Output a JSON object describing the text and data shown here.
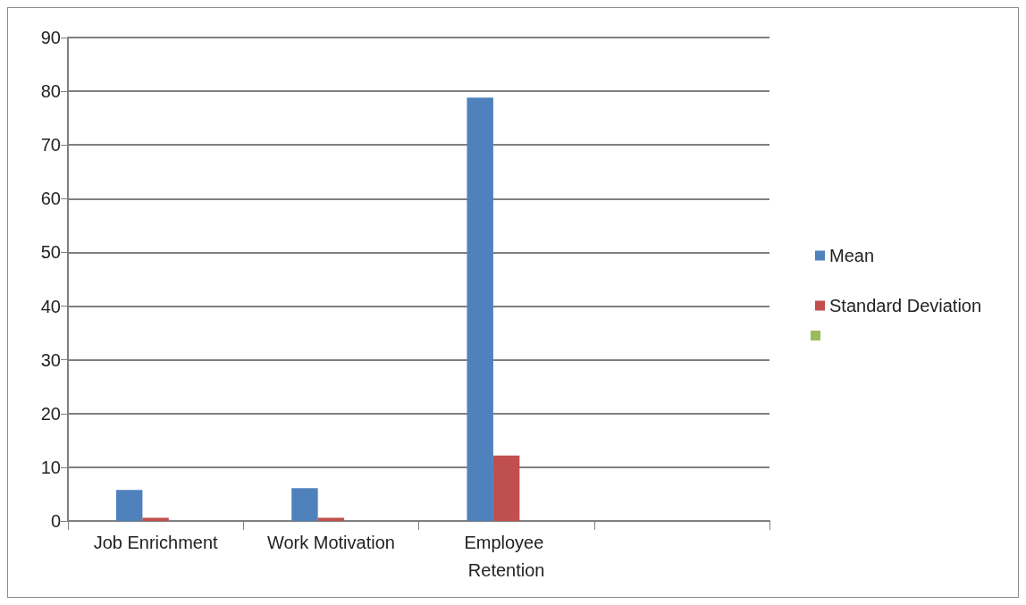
{
  "chart_data": {
    "type": "bar",
    "categories": [
      "Job Enrichment",
      "Work Motivation",
      "Employee Retention",
      null
    ],
    "series": [
      {
        "name": "Mean",
        "color": "#4f81bd",
        "values": [
          5.8,
          6.1,
          78.8,
          null
        ]
      },
      {
        "name": "Standard Deviation",
        "color": "#c0504d",
        "values": [
          0.6,
          0.6,
          12.2,
          null
        ]
      },
      {
        "color": "#9bbb59",
        "values": [
          null,
          null,
          null,
          null
        ]
      }
    ],
    "ylim": [
      0,
      90
    ],
    "yticks": [
      0,
      10,
      20,
      30,
      40,
      50,
      60,
      70,
      80,
      90
    ],
    "grid": "y",
    "legend": "right"
  }
}
